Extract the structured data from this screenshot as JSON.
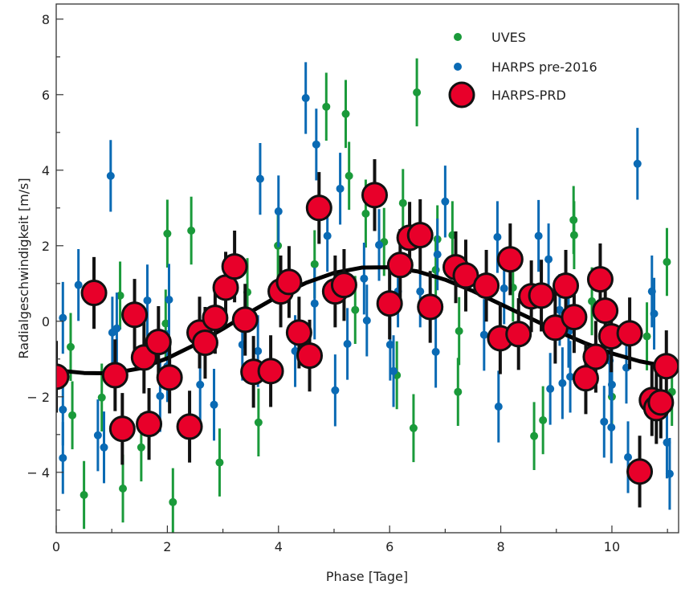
{
  "chart_data": {
    "type": "scatter",
    "xlabel": "Phase [Tage]",
    "ylabel": "Radialgeschwindigkeit [m/s]",
    "xlim": [
      0,
      11.2
    ],
    "ylim": [
      -5.6,
      8.4
    ],
    "xticks": [
      0,
      2,
      4,
      6,
      8,
      10
    ],
    "yticks": [
      -4,
      -2,
      0,
      2,
      4,
      6,
      8
    ],
    "ytick_labels": [
      "− 4",
      "− 2",
      "0",
      "2",
      "4",
      "6",
      "8"
    ],
    "grid": false,
    "legend_position": "top-right",
    "colors": {
      "uves": "#1a9a3a",
      "harps_pre": "#0a6ab4",
      "harps_prd": "#e8002a",
      "model": "#000000"
    },
    "series": [
      {
        "name": "UVES",
        "yerr": 0.9,
        "points": [
          [
            0.26,
            -0.68
          ],
          [
            0.29,
            -2.49
          ],
          [
            0.5,
            -4.6
          ],
          [
            0.82,
            -2.02
          ],
          [
            1.15,
            0.68
          ],
          [
            1.2,
            -4.43
          ],
          [
            1.53,
            -3.34
          ],
          [
            2.0,
            2.32
          ],
          [
            1.97,
            -0.06
          ],
          [
            2.1,
            -4.79
          ],
          [
            2.43,
            2.4
          ],
          [
            2.94,
            -3.74
          ],
          [
            3.44,
            0.77
          ],
          [
            3.64,
            -2.68
          ],
          [
            3.99,
            2.0
          ],
          [
            4.65,
            1.51
          ],
          [
            4.86,
            5.68
          ],
          [
            5.21,
            5.49
          ],
          [
            5.27,
            3.85
          ],
          [
            5.38,
            0.3
          ],
          [
            5.57,
            2.85
          ],
          [
            5.9,
            2.1
          ],
          [
            6.13,
            -1.43
          ],
          [
            6.24,
            3.13
          ],
          [
            6.43,
            -2.83
          ],
          [
            6.49,
            6.06
          ],
          [
            6.83,
            1.36
          ],
          [
            6.86,
            2.17
          ],
          [
            7.13,
            2.28
          ],
          [
            7.23,
            -1.87
          ],
          [
            7.25,
            -0.26
          ],
          [
            8.22,
            0.89
          ],
          [
            8.6,
            -3.04
          ],
          [
            8.76,
            -2.62
          ],
          [
            9.31,
            2.68
          ],
          [
            9.32,
            2.28
          ],
          [
            9.64,
            0.53
          ],
          [
            10.0,
            -2.0
          ],
          [
            10.63,
            -0.4
          ],
          [
            10.99,
            1.57
          ],
          [
            11.08,
            -1.87
          ]
        ]
      },
      {
        "name": "HARPS pre-2016",
        "yerr": 0.95,
        "points": [
          [
            0.12,
            0.09
          ],
          [
            0.12,
            -2.34
          ],
          [
            0.12,
            -3.62
          ],
          [
            0.4,
            0.96
          ],
          [
            0.75,
            -3.02
          ],
          [
            0.86,
            -3.34
          ],
          [
            0.98,
            3.85
          ],
          [
            1.01,
            -0.3
          ],
          [
            1.09,
            -0.19
          ],
          [
            1.64,
            0.55
          ],
          [
            1.87,
            -1.98
          ],
          [
            2.0,
            -1.19
          ],
          [
            2.03,
            0.57
          ],
          [
            2.59,
            -1.68
          ],
          [
            2.84,
            -2.21
          ],
          [
            3.35,
            -0.62
          ],
          [
            3.63,
            -0.79
          ],
          [
            3.67,
            3.77
          ],
          [
            4.0,
            2.91
          ],
          [
            4.3,
            -0.79
          ],
          [
            4.49,
            5.91
          ],
          [
            4.65,
            0.47
          ],
          [
            4.68,
            4.68
          ],
          [
            4.88,
            2.26
          ],
          [
            5.02,
            -1.83
          ],
          [
            5.11,
            3.51
          ],
          [
            5.24,
            -0.6
          ],
          [
            5.54,
            1.13
          ],
          [
            5.59,
            0.02
          ],
          [
            5.81,
            2.02
          ],
          [
            6.01,
            -0.62
          ],
          [
            6.07,
            -1.32
          ],
          [
            6.15,
            0.79
          ],
          [
            6.55,
            0.79
          ],
          [
            6.86,
            1.77
          ],
          [
            7.0,
            3.17
          ],
          [
            6.83,
            -0.81
          ],
          [
            7.7,
            -0.36
          ],
          [
            7.94,
            2.23
          ],
          [
            7.96,
            -2.26
          ],
          [
            8.06,
            0.87
          ],
          [
            8.68,
            2.26
          ],
          [
            8.86,
            1.64
          ],
          [
            8.89,
            -1.79
          ],
          [
            9.06,
            0.3
          ],
          [
            9.11,
            -1.64
          ],
          [
            9.22,
            -0.28
          ],
          [
            9.25,
            -1.47
          ],
          [
            9.86,
            -2.66
          ],
          [
            9.96,
            -1.04
          ],
          [
            9.99,
            -2.81
          ],
          [
            10.0,
            -1.68
          ],
          [
            10.26,
            -1.23
          ],
          [
            10.29,
            -3.6
          ],
          [
            10.46,
            4.17
          ],
          [
            10.72,
            0.79
          ],
          [
            10.76,
            0.2
          ],
          [
            10.99,
            -3.21
          ],
          [
            11.04,
            -4.04
          ]
        ]
      },
      {
        "name": "HARPS-PRD",
        "yerr": 0.95,
        "points": [
          [
            0,
            -1.47
          ],
          [
            0.68,
            0.75
          ],
          [
            1.06,
            -1.43
          ],
          [
            1.19,
            -2.85
          ],
          [
            1.41,
            0.17
          ],
          [
            1.58,
            -0.96
          ],
          [
            1.67,
            -2.72
          ],
          [
            1.84,
            -0.55
          ],
          [
            2.04,
            -1.49
          ],
          [
            2.4,
            -2.79
          ],
          [
            2.58,
            -0.3
          ],
          [
            2.68,
            -0.57
          ],
          [
            2.86,
            0.09
          ],
          [
            3.05,
            0.89
          ],
          [
            3.21,
            1.45
          ],
          [
            3.4,
            0.04
          ],
          [
            3.55,
            -1.34
          ],
          [
            3.86,
            -1.32
          ],
          [
            4.04,
            0.79
          ],
          [
            4.19,
            1.04
          ],
          [
            4.37,
            -0.3
          ],
          [
            4.56,
            -0.91
          ],
          [
            4.73,
            3.0
          ],
          [
            5.02,
            0.79
          ],
          [
            5.18,
            0.96
          ],
          [
            5.73,
            3.34
          ],
          [
            6.0,
            0.47
          ],
          [
            6.19,
            1.49
          ],
          [
            6.36,
            2.21
          ],
          [
            6.55,
            2.28
          ],
          [
            6.73,
            0.38
          ],
          [
            7.19,
            1.43
          ],
          [
            7.37,
            1.21
          ],
          [
            7.74,
            0.94
          ],
          [
            7.99,
            -0.45
          ],
          [
            8.17,
            1.64
          ],
          [
            8.32,
            -0.34
          ],
          [
            8.55,
            0.66
          ],
          [
            8.73,
            0.68
          ],
          [
            8.98,
            -0.17
          ],
          [
            9.17,
            0.94
          ],
          [
            9.32,
            0.11
          ],
          [
            9.53,
            -1.51
          ],
          [
            9.71,
            -0.94
          ],
          [
            9.79,
            1.11
          ],
          [
            9.88,
            0.28
          ],
          [
            9.99,
            -0.4
          ],
          [
            10.32,
            -0.32
          ],
          [
            10.5,
            -3.98
          ],
          [
            10.72,
            -2.09
          ],
          [
            10.8,
            -2.3
          ],
          [
            10.88,
            -2.15
          ],
          [
            10.98,
            -1.19
          ]
        ]
      }
    ],
    "model_curve": [
      [
        0,
        -1.3
      ],
      [
        0.5,
        -1.37
      ],
      [
        1,
        -1.38
      ],
      [
        1.5,
        -1.25
      ],
      [
        2,
        -0.98
      ],
      [
        2.5,
        -0.62
      ],
      [
        3,
        -0.2
      ],
      [
        3.5,
        0.25
      ],
      [
        4,
        0.67
      ],
      [
        4.5,
        1.02
      ],
      [
        5,
        1.28
      ],
      [
        5.5,
        1.42
      ],
      [
        6,
        1.43
      ],
      [
        6.5,
        1.32
      ],
      [
        7,
        1.1
      ],
      [
        7.5,
        0.8
      ],
      [
        8,
        0.45
      ],
      [
        8.5,
        0.1
      ],
      [
        9,
        -0.25
      ],
      [
        9.5,
        -0.57
      ],
      [
        10,
        -0.85
      ],
      [
        10.5,
        -1.06
      ],
      [
        11,
        -1.2
      ],
      [
        11.2,
        -1.22
      ]
    ]
  }
}
